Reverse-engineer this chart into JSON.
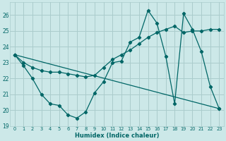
{
  "xlabel": "Humidex (Indice chaleur)",
  "background_color": "#cce8e8",
  "grid_color": "#aacccc",
  "line_color": "#006666",
  "xlim": [
    -0.5,
    23.5
  ],
  "ylim": [
    19.0,
    26.8
  ],
  "yticks": [
    19,
    20,
    21,
    22,
    23,
    24,
    25,
    26
  ],
  "xticks": [
    0,
    1,
    2,
    3,
    4,
    5,
    6,
    7,
    8,
    9,
    10,
    11,
    12,
    13,
    14,
    15,
    16,
    17,
    18,
    19,
    20,
    21,
    22,
    23
  ],
  "line1_x": [
    0,
    1,
    2,
    3,
    4,
    5,
    6,
    7,
    8,
    9,
    10,
    11,
    12,
    13,
    14,
    15,
    16,
    17,
    18,
    19,
    20,
    21,
    22,
    23
  ],
  "line1_y": [
    23.5,
    22.8,
    22.0,
    21.0,
    20.4,
    20.3,
    19.7,
    19.5,
    19.9,
    21.1,
    21.8,
    23.0,
    23.1,
    24.3,
    24.6,
    26.3,
    25.5,
    23.4,
    20.4,
    26.1,
    25.1,
    23.7,
    21.5,
    20.1
  ],
  "line2_x": [
    0,
    1,
    2,
    3,
    4,
    5,
    6,
    7,
    8,
    9,
    10,
    11,
    12,
    13,
    14,
    15,
    16,
    17,
    18,
    19,
    20,
    21,
    22,
    23
  ],
  "line2_y": [
    23.5,
    23.0,
    22.7,
    22.5,
    22.4,
    22.4,
    22.3,
    22.2,
    22.1,
    22.2,
    22.7,
    23.2,
    23.5,
    23.8,
    24.2,
    24.6,
    24.9,
    25.1,
    25.3,
    24.9,
    25.0,
    25.0,
    25.1,
    25.1
  ],
  "line3_x": [
    0,
    23
  ],
  "line3_y": [
    23.5,
    20.1
  ]
}
